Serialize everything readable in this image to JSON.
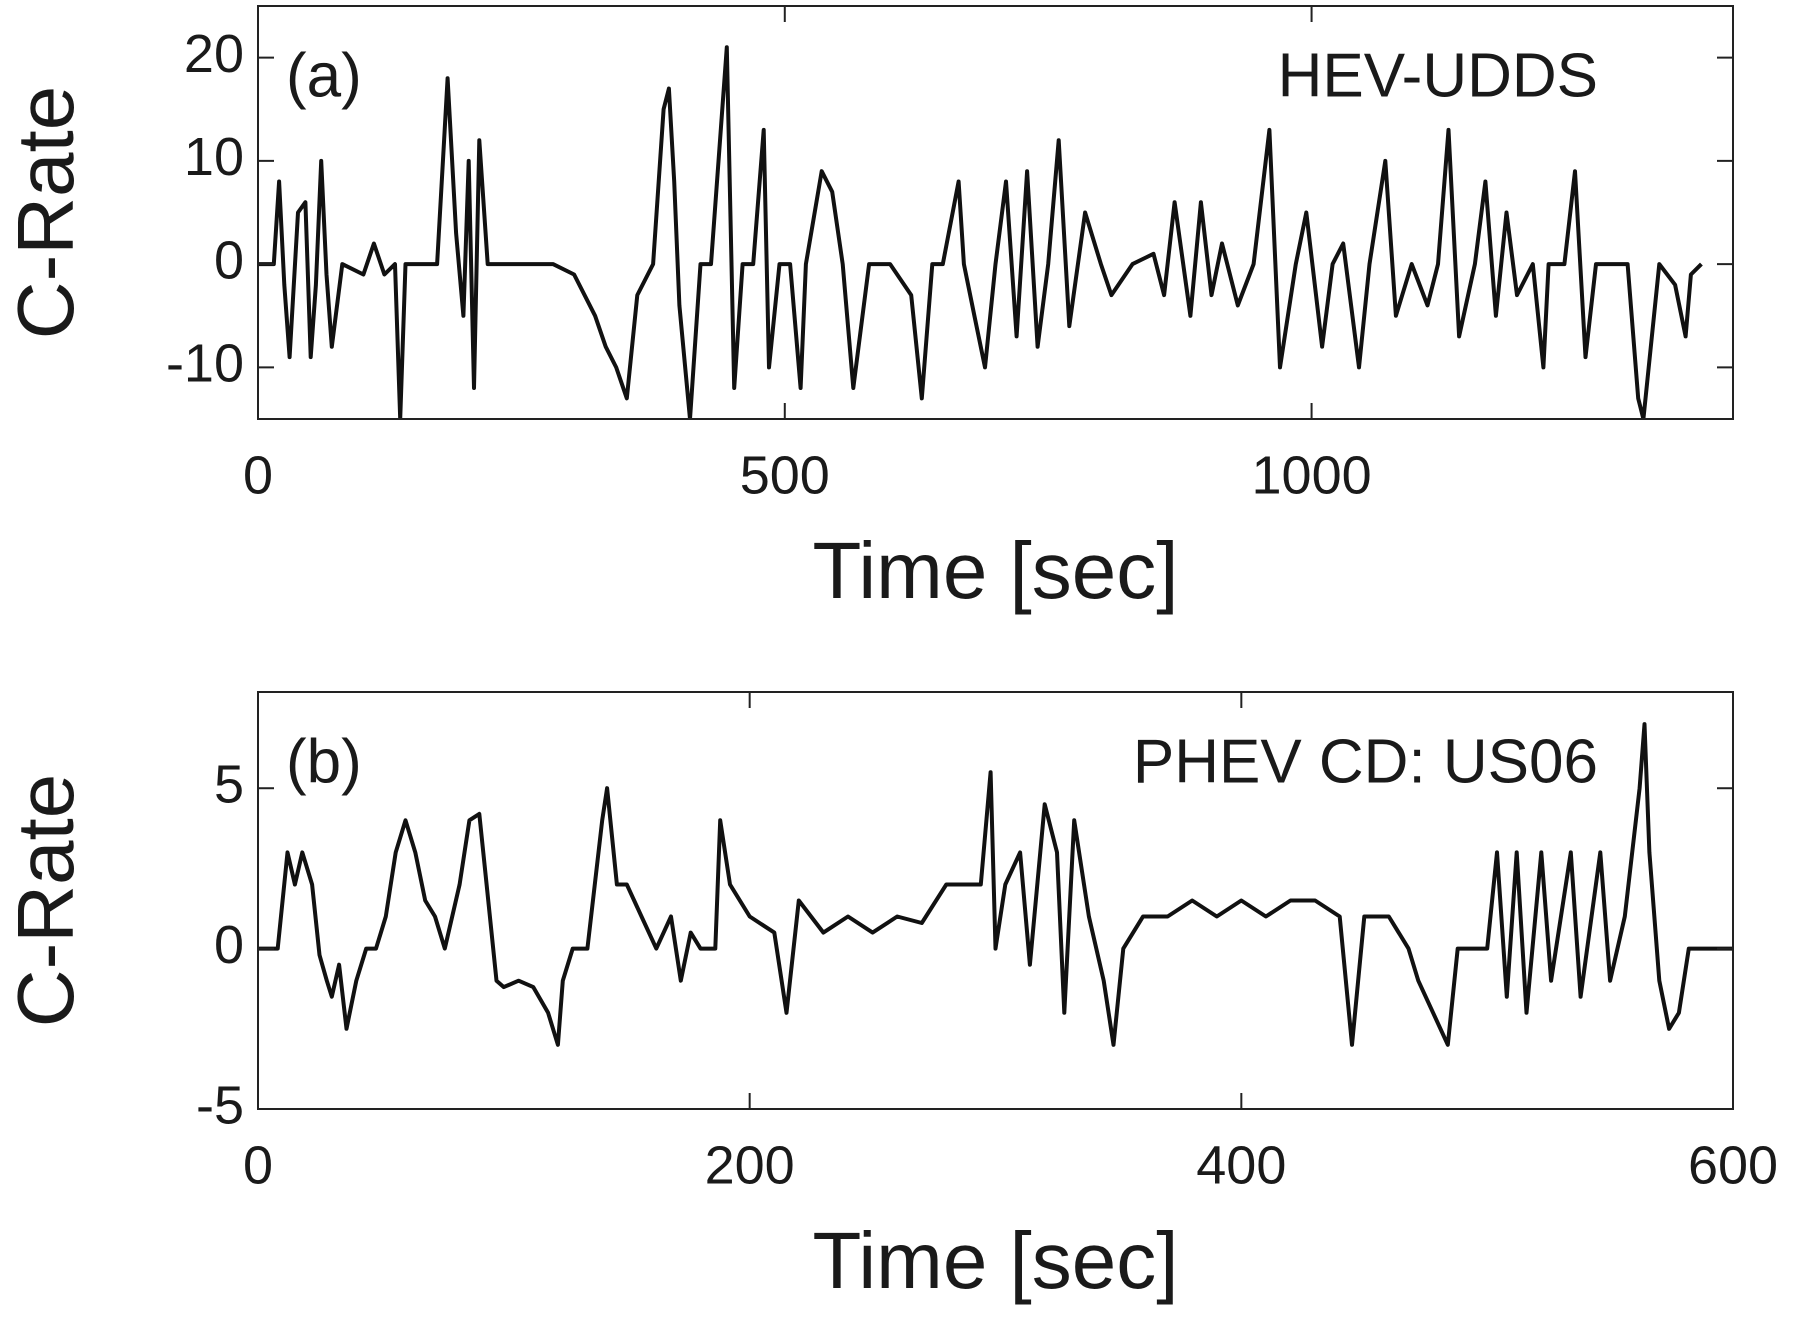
{
  "chart_data": [
    {
      "type": "line",
      "annotation": "(a)",
      "label": "HEV-UDDS",
      "xlabel": "Time [sec]",
      "ylabel": "C-Rate",
      "color": "#111111",
      "x": [
        0,
        15,
        20,
        25,
        30,
        38,
        45,
        50,
        55,
        60,
        65,
        70,
        80,
        100,
        110,
        120,
        130,
        135,
        140,
        160,
        170,
        180,
        188,
        195,
        200,
        205,
        210,
        218,
        250,
        280,
        300,
        320,
        330,
        340,
        350,
        360,
        375,
        385,
        390,
        395,
        400,
        410,
        420,
        430,
        445,
        452,
        460,
        470,
        480,
        485,
        495,
        505,
        515,
        520,
        535,
        545,
        555,
        565,
        580,
        600,
        620,
        630,
        640,
        650,
        665,
        670,
        680,
        690,
        700,
        710,
        720,
        730,
        740,
        750,
        760,
        770,
        785,
        800,
        810,
        830,
        850,
        860,
        870,
        885,
        895,
        905,
        915,
        930,
        945,
        960,
        970,
        985,
        995,
        1010,
        1020,
        1030,
        1045,
        1055,
        1070,
        1080,
        1095,
        1110,
        1120,
        1130,
        1140,
        1155,
        1165,
        1175,
        1180,
        1185,
        1195,
        1210,
        1220,
        1225,
        1240,
        1250,
        1260,
        1270,
        1300,
        1310,
        1315,
        1330,
        1345,
        1355,
        1360,
        1370
      ],
      "values": [
        0,
        0,
        8,
        -2,
        -9,
        5,
        6,
        -9,
        -2,
        10,
        -1,
        -8,
        0,
        -1,
        2,
        -1,
        0,
        -15,
        0,
        0,
        0,
        18,
        3,
        -5,
        10,
        -12,
        12,
        0,
        0,
        0,
        -1,
        -5,
        -8,
        -10,
        -13,
        -3,
        0,
        15,
        17,
        8,
        -4,
        -15,
        0,
        0,
        21,
        -12,
        0,
        0,
        13,
        -10,
        0,
        0,
        -12,
        0,
        9,
        7,
        0,
        -12,
        0,
        0,
        -3,
        -13,
        0,
        0,
        8,
        0,
        -5,
        -10,
        0,
        8,
        -7,
        9,
        -8,
        0,
        12,
        -6,
        5,
        0,
        -3,
        0,
        1,
        -3,
        6,
        -5,
        6,
        -3,
        2,
        -4,
        0,
        13,
        -10,
        0,
        5,
        -8,
        0,
        2,
        -10,
        0,
        10,
        -5,
        0,
        -4,
        0,
        13,
        -7,
        0,
        8,
        -5,
        0,
        5,
        -3,
        0,
        -10,
        0,
        0,
        9,
        -9,
        0,
        0,
        -13,
        -15,
        0,
        -2,
        -7,
        -1,
        0
      ],
      "xlim": [
        0,
        1400
      ],
      "ylim": [
        -15,
        25
      ],
      "xticks": [
        0,
        500,
        1000
      ],
      "yticks": [
        -10,
        0,
        10,
        20
      ]
    },
    {
      "type": "line",
      "annotation": "(b)",
      "label": "PHEV CD: US06",
      "xlabel": "Time [sec]",
      "ylabel": "C-Rate",
      "color": "#111111",
      "x": [
        0,
        8,
        12,
        15,
        18,
        22,
        25,
        28,
        30,
        33,
        36,
        40,
        44,
        48,
        52,
        56,
        60,
        64,
        68,
        72,
        76,
        82,
        86,
        90,
        93,
        97,
        100,
        106,
        112,
        118,
        122,
        124,
        128,
        134,
        140,
        142,
        146,
        150,
        156,
        162,
        168,
        172,
        176,
        180,
        186,
        188,
        192,
        200,
        210,
        215,
        220,
        230,
        240,
        250,
        260,
        270,
        280,
        288,
        294,
        298,
        300,
        304,
        310,
        314,
        320,
        325,
        328,
        332,
        338,
        344,
        348,
        352,
        360,
        370,
        380,
        390,
        400,
        410,
        420,
        430,
        440,
        445,
        450,
        460,
        468,
        472,
        478,
        484,
        488,
        494,
        500,
        504,
        508,
        512,
        516,
        522,
        526,
        534,
        538,
        546,
        550,
        556,
        562,
        564,
        566,
        570,
        574,
        578,
        582,
        590,
        600
      ],
      "values": [
        0,
        0,
        3,
        2,
        3,
        2,
        -0.2,
        -1,
        -1.5,
        -0.5,
        -2.5,
        -1,
        0,
        0,
        1,
        3,
        4,
        3,
        1.5,
        1,
        0,
        2,
        4,
        4.2,
        2,
        -1,
        -1.2,
        -1,
        -1.2,
        -2,
        -3,
        -1,
        0,
        0,
        4,
        5,
        2,
        2,
        1,
        0,
        1,
        -1,
        0.5,
        0,
        0,
        4,
        2,
        1,
        0.5,
        -2,
        1.5,
        0.5,
        1,
        0.5,
        1,
        0.8,
        2,
        2,
        2,
        5.5,
        0,
        2,
        3,
        -0.5,
        4.5,
        3,
        -2,
        4,
        1,
        -1,
        -3,
        0,
        1,
        1,
        1.5,
        1,
        1.5,
        1,
        1.5,
        1.5,
        1,
        -3,
        1,
        1,
        0,
        -1,
        -2,
        -3,
        0,
        0,
        0,
        3,
        -1.5,
        3,
        -2,
        3,
        -1,
        3,
        -1.5,
        3,
        -1,
        1,
        5,
        7,
        3,
        -1,
        -2.5,
        -2,
        0,
        0,
        0
      ],
      "xlim": [
        0,
        600
      ],
      "ylim": [
        -5,
        8
      ],
      "xticks": [
        0,
        200,
        400,
        600
      ],
      "yticks": [
        -5,
        0,
        5
      ]
    }
  ]
}
